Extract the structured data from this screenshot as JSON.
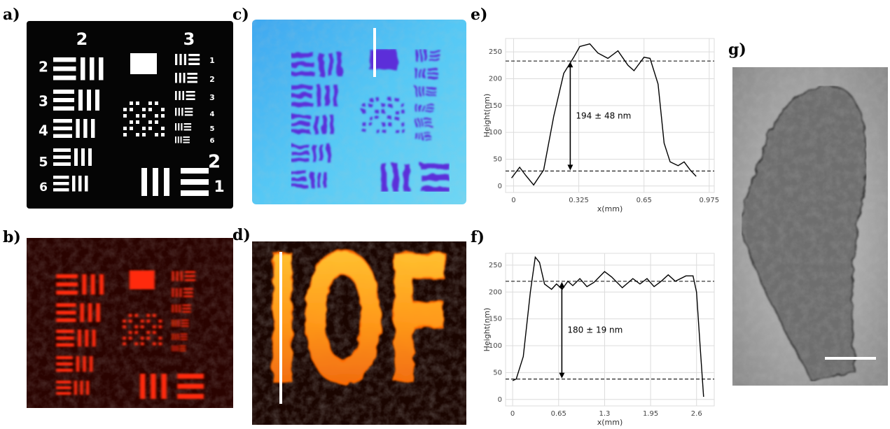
{
  "panel_labels": [
    "a)",
    "b)",
    "c)",
    "d)",
    "e)",
    "f)",
    "g)"
  ],
  "target_labels": [
    "2",
    "3",
    "2",
    "3",
    "4",
    "5",
    "6",
    "1",
    "2",
    "3",
    "4",
    "5",
    "6",
    "2",
    "1"
  ],
  "image_text": "IOF",
  "chart_data": [
    {
      "type": "line",
      "xlabel": "x(mm)",
      "ylabel": "Height(nm)",
      "grid": true,
      "color": "#000000",
      "xlim": [
        -0.04,
        1.0
      ],
      "ylim": [
        -12,
        275
      ],
      "xticks": [
        0,
        0.325,
        0.65,
        0.975
      ],
      "yticks": [
        0,
        50,
        100,
        150,
        200,
        250
      ],
      "x": [
        -0.01,
        0.03,
        0.06,
        0.1,
        0.15,
        0.2,
        0.25,
        0.3,
        0.33,
        0.38,
        0.42,
        0.47,
        0.52,
        0.57,
        0.6,
        0.65,
        0.68,
        0.72,
        0.75,
        0.78,
        0.82,
        0.85,
        0.88,
        0.91
      ],
      "values": [
        15,
        35,
        20,
        2,
        30,
        130,
        210,
        240,
        260,
        265,
        248,
        238,
        252,
        225,
        215,
        240,
        238,
        190,
        80,
        45,
        38,
        45,
        30,
        18
      ],
      "hlines": [
        233,
        28
      ],
      "annotation": "194 ± 48 nm"
    },
    {
      "type": "line",
      "xlabel": "x(mm)",
      "ylabel": "Height(nm)",
      "grid": true,
      "color": "#000000",
      "xlim": [
        -0.1,
        2.85
      ],
      "ylim": [
        -12,
        272
      ],
      "xticks": [
        0,
        0.65,
        1.3,
        1.95,
        2.6
      ],
      "yticks": [
        0,
        50,
        100,
        150,
        200,
        250
      ],
      "x": [
        0,
        0.05,
        0.15,
        0.25,
        0.32,
        0.38,
        0.45,
        0.55,
        0.62,
        0.7,
        0.78,
        0.85,
        0.95,
        1.05,
        1.15,
        1.3,
        1.4,
        1.55,
        1.7,
        1.8,
        1.9,
        2.0,
        2.1,
        2.2,
        2.3,
        2.45,
        2.55,
        2.6,
        2.65,
        2.7
      ],
      "values": [
        35,
        38,
        80,
        200,
        265,
        255,
        215,
        205,
        215,
        205,
        220,
        212,
        225,
        210,
        218,
        238,
        228,
        208,
        225,
        215,
        225,
        210,
        220,
        232,
        220,
        230,
        230,
        200,
        100,
        5
      ],
      "hlines": [
        220,
        38
      ],
      "annotation": "180 ± 19 nm"
    }
  ]
}
